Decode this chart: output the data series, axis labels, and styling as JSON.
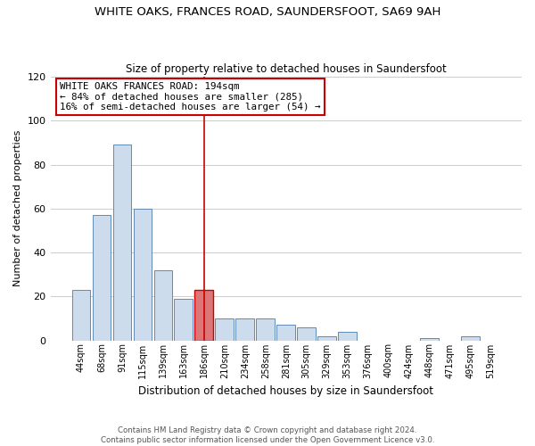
{
  "title": "WHITE OAKS, FRANCES ROAD, SAUNDERSFOOT, SA69 9AH",
  "subtitle": "Size of property relative to detached houses in Saundersfoot",
  "xlabel": "Distribution of detached houses by size in Saundersfoot",
  "ylabel": "Number of detached properties",
  "footer_line1": "Contains HM Land Registry data © Crown copyright and database right 2024.",
  "footer_line2": "Contains public sector information licensed under the Open Government Licence v3.0.",
  "bin_labels": [
    "44sqm",
    "68sqm",
    "91sqm",
    "115sqm",
    "139sqm",
    "163sqm",
    "186sqm",
    "210sqm",
    "234sqm",
    "258sqm",
    "281sqm",
    "305sqm",
    "329sqm",
    "353sqm",
    "376sqm",
    "400sqm",
    "424sqm",
    "448sqm",
    "471sqm",
    "495sqm",
    "519sqm"
  ],
  "bar_heights": [
    23,
    57,
    89,
    60,
    32,
    19,
    23,
    10,
    10,
    10,
    7,
    6,
    2,
    4,
    0,
    0,
    0,
    1,
    0,
    2,
    0
  ],
  "bar_color": "#ccdcec",
  "bar_edge_color": "#4a7aaa",
  "highlight_bar_index": 6,
  "highlight_bar_color": "#dd7777",
  "highlight_bar_edge": "#cc0000",
  "vline_color": "#cc0000",
  "annotation_title": "WHITE OAKS FRANCES ROAD: 194sqm",
  "annotation_line1": "← 84% of detached houses are smaller (285)",
  "annotation_line2": "16% of semi-detached houses are larger (54) →",
  "annotation_box_edge": "#cc0000",
  "ylim": [
    0,
    120
  ],
  "yticks": [
    0,
    20,
    40,
    60,
    80,
    100,
    120
  ],
  "background_color": "#ffffff",
  "grid_color": "#cccccc"
}
